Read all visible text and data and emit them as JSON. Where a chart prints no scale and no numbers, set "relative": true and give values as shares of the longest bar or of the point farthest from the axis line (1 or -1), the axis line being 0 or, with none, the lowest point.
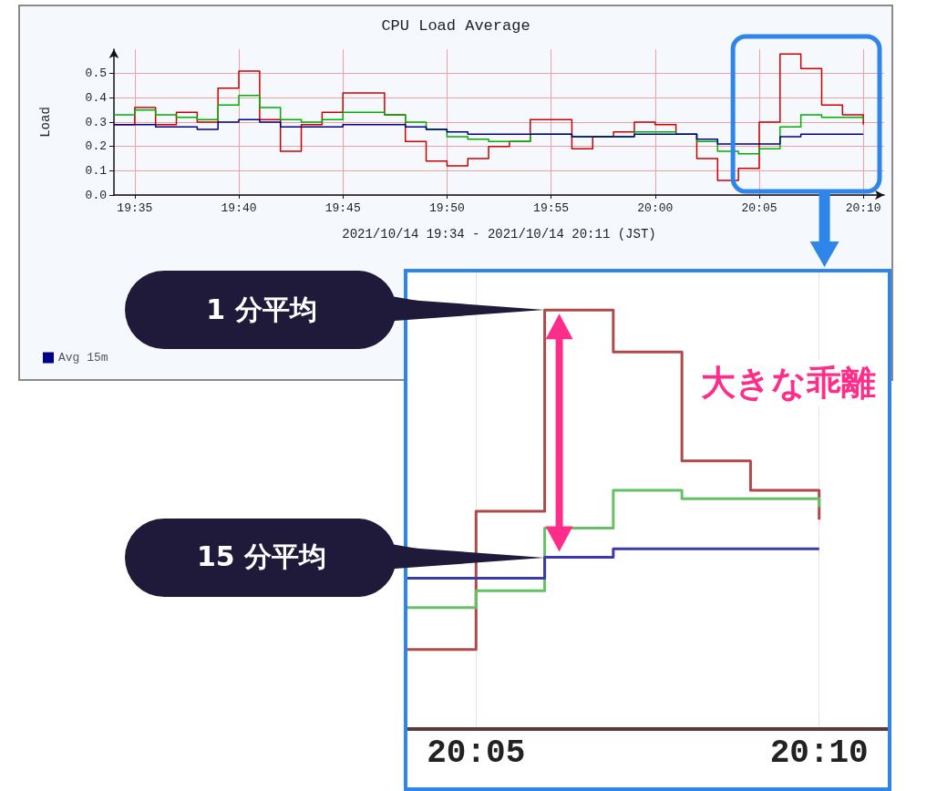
{
  "chart_data": [
    {
      "type": "step",
      "title": "CPU Load Average",
      "xlabel": "2021/10/14 19:34 - 2021/10/14 20:11 (JST)",
      "ylabel": "Load",
      "x": [
        "2021-10-14T19:34",
        "2021-10-14T19:35",
        "2021-10-14T19:36",
        "2021-10-14T19:37",
        "2021-10-14T19:38",
        "2021-10-14T19:39",
        "2021-10-14T19:40",
        "2021-10-14T19:41",
        "2021-10-14T19:42",
        "2021-10-14T19:43",
        "2021-10-14T19:44",
        "2021-10-14T19:45",
        "2021-10-14T19:46",
        "2021-10-14T19:47",
        "2021-10-14T19:48",
        "2021-10-14T19:49",
        "2021-10-14T19:50",
        "2021-10-14T19:51",
        "2021-10-14T19:52",
        "2021-10-14T19:53",
        "2021-10-14T19:54",
        "2021-10-14T19:55",
        "2021-10-14T19:56",
        "2021-10-14T19:57",
        "2021-10-14T19:58",
        "2021-10-14T19:59",
        "2021-10-14T20:00",
        "2021-10-14T20:01",
        "2021-10-14T20:02",
        "2021-10-14T20:03",
        "2021-10-14T20:04",
        "2021-10-14T20:05",
        "2021-10-14T20:06",
        "2021-10-14T20:07",
        "2021-10-14T20:08",
        "2021-10-14T20:09",
        "2021-10-14T20:10"
      ],
      "series": [
        {
          "color": "#cc0000",
          "values": [
            0.29,
            0.36,
            0.29,
            0.34,
            0.3,
            0.44,
            0.51,
            0.31,
            0.18,
            0.29,
            0.34,
            0.42,
            0.42,
            0.33,
            0.22,
            0.14,
            0.12,
            0.15,
            0.2,
            0.22,
            0.31,
            0.31,
            0.19,
            0.24,
            0.26,
            0.3,
            0.29,
            0.25,
            0.15,
            0.06,
            0.11,
            0.3,
            0.58,
            0.52,
            0.37,
            0.33,
            0.29
          ]
        },
        {
          "color": "#00b000",
          "values": [
            0.33,
            0.35,
            0.33,
            0.32,
            0.31,
            0.37,
            0.41,
            0.36,
            0.31,
            0.3,
            0.31,
            0.34,
            0.34,
            0.33,
            0.3,
            0.27,
            0.24,
            0.23,
            0.22,
            0.22,
            0.25,
            0.25,
            0.24,
            0.24,
            0.24,
            0.26,
            0.26,
            0.25,
            0.22,
            0.18,
            0.17,
            0.19,
            0.28,
            0.33,
            0.32,
            0.32,
            0.31
          ]
        },
        {
          "name": "Avg 15m",
          "color": "#000088",
          "values": [
            0.29,
            0.29,
            0.28,
            0.28,
            0.27,
            0.3,
            0.31,
            0.3,
            0.28,
            0.28,
            0.28,
            0.29,
            0.29,
            0.29,
            0.28,
            0.27,
            0.26,
            0.25,
            0.25,
            0.25,
            0.25,
            0.25,
            0.24,
            0.24,
            0.24,
            0.25,
            0.25,
            0.25,
            0.23,
            0.21,
            0.21,
            0.21,
            0.24,
            0.25,
            0.25,
            0.25,
            0.25
          ]
        }
      ],
      "xlim": [
        "2021-10-14T19:34",
        "2021-10-14T20:11"
      ],
      "xticks": [
        {
          "value": "2021-10-14T19:35",
          "label": "19:35"
        },
        {
          "value": "2021-10-14T19:40",
          "label": "19:40"
        },
        {
          "value": "2021-10-14T19:45",
          "label": "19:45"
        },
        {
          "value": "2021-10-14T19:50",
          "label": "19:50"
        },
        {
          "value": "2021-10-14T19:55",
          "label": "19:55"
        },
        {
          "value": "2021-10-14T20:00",
          "label": "20:00"
        },
        {
          "value": "2021-10-14T20:05",
          "label": "20:05"
        },
        {
          "value": "2021-10-14T20:10",
          "label": "20:10"
        }
      ],
      "ylim": [
        0,
        0.6
      ],
      "yticks": [
        {
          "value": 0,
          "label": "0.0"
        },
        0.1,
        0.2,
        0.3,
        0.4,
        0.5
      ],
      "grid": true,
      "legend": "bottom left"
    },
    {
      "type": "step",
      "x": [
        "2021-10-14T20:04",
        "2021-10-14T20:05",
        "2021-10-14T20:06",
        "2021-10-14T20:07",
        "2021-10-14T20:08",
        "2021-10-14T20:09",
        "2021-10-14T20:10"
      ],
      "series": [
        {
          "color": "#b04a4a",
          "values": [
            0.19,
            0.52,
            1,
            0.9,
            0.64,
            0.57,
            0.5
          ]
        },
        {
          "color": "#66c066",
          "values": [
            0.29,
            0.33,
            0.48,
            0.57,
            0.55,
            0.55,
            0.53
          ]
        },
        {
          "color": "#3a3aa8",
          "values": [
            0.36,
            0.36,
            0.41,
            0.43,
            0.43,
            0.43,
            0.43
          ]
        }
      ],
      "xlim": [
        "2021-10-14T20:04",
        "2021-10-14T20:11"
      ],
      "xticks": [
        {
          "value": "2021-10-14T20:05",
          "label": "20:05"
        },
        {
          "value": "2021-10-14T20:10",
          "label": "20:10"
        }
      ],
      "relative": true,
      "grid": true,
      "tick_labels": "x",
      "annotations": [
        "1 分平均",
        "15 分平均",
        "大きな乖離"
      ]
    }
  ]
}
